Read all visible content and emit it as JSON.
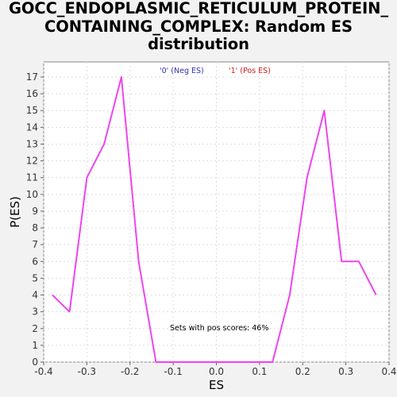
{
  "chart_data": {
    "type": "line",
    "title_lines": [
      "GOCC_ENDOPLASMIC_RETICULUM_PROTEIN_",
      "CONTAINING_COMPLEX: Random ES",
      "distribution"
    ],
    "xlabel": "ES",
    "ylabel": "P(ES)",
    "xlim": [
      -0.4,
      0.4
    ],
    "ylim": [
      0,
      17.9
    ],
    "x_ticks": [
      -0.4,
      -0.3,
      -0.2,
      -0.1,
      0.0,
      0.1,
      0.2,
      0.3,
      0.4
    ],
    "x_tick_labels": [
      "-0.4",
      "-0.3",
      "-0.2",
      "-0.1",
      "0.0",
      "0.1",
      "0.2",
      "0.3",
      "0.4"
    ],
    "y_ticks": [
      0,
      1,
      2,
      3,
      4,
      5,
      6,
      7,
      8,
      9,
      10,
      11,
      12,
      13,
      14,
      15,
      16,
      17
    ],
    "grid": true,
    "legend": [
      {
        "label": "'0' (Neg ES)",
        "color": "#3333aa"
      },
      {
        "label": "'1' (Pos ES)",
        "color": "#cc2222"
      }
    ],
    "annotation": "Sets with pos scores: 46%",
    "series": [
      {
        "color": "#ee44ee",
        "x": [
          -0.38,
          -0.34,
          -0.3,
          -0.26,
          -0.22,
          -0.18,
          -0.14,
          -0.1,
          -0.06,
          -0.02,
          0.02,
          0.06,
          0.1,
          0.13,
          0.17,
          0.21,
          0.25,
          0.29,
          0.33,
          0.37
        ],
        "y": [
          4,
          3,
          11,
          13,
          17,
          6,
          0,
          0,
          0,
          0,
          0,
          0,
          0,
          0,
          4,
          11,
          15,
          6,
          6,
          4
        ]
      }
    ]
  }
}
